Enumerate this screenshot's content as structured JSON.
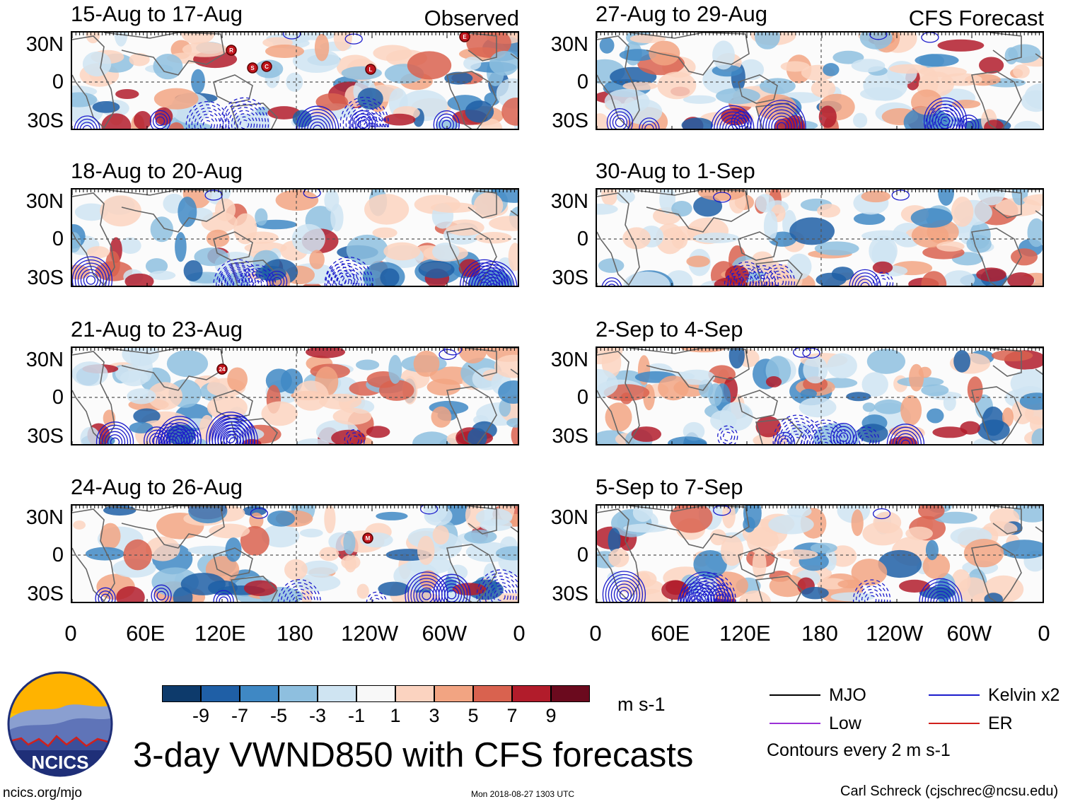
{
  "panels": [
    {
      "title": "15-Aug to 17-Aug",
      "corner": "Observed",
      "storms": [
        "R",
        "S",
        "C",
        "L",
        "E"
      ]
    },
    {
      "title": "18-Aug to 20-Aug",
      "corner": "",
      "storms": []
    },
    {
      "title": "21-Aug to 23-Aug",
      "corner": "",
      "storms": [
        "24"
      ]
    },
    {
      "title": "24-Aug to 26-Aug",
      "corner": "",
      "storms": [
        "M"
      ]
    },
    {
      "title": "27-Aug to 29-Aug",
      "corner": "CFS Forecast",
      "storms": []
    },
    {
      "title": "30-Aug to 1-Sep",
      "corner": "",
      "storms": []
    },
    {
      "title": "2-Sep to 4-Sep",
      "corner": "",
      "storms": []
    },
    {
      "title": "5-Sep to 7-Sep",
      "corner": "",
      "storms": []
    }
  ],
  "lat_labels": [
    "30N",
    "0",
    "30S"
  ],
  "lon_labels": [
    "0",
    "60E",
    "120E",
    "180",
    "120W",
    "60W",
    "0"
  ],
  "colorbar": {
    "unit": "m s-1",
    "ticks": [
      "-9",
      "-7",
      "-5",
      "-3",
      "-1",
      "1",
      "3",
      "5",
      "7",
      "9"
    ],
    "colors": [
      "#0d3a6b",
      "#1f5fa6",
      "#3f88c4",
      "#8ebfdf",
      "#cfe4f2",
      "#f8f8f8",
      "#fbd3c0",
      "#f2a482",
      "#d9624f",
      "#b21c2b",
      "#6b0a1e"
    ]
  },
  "legend": {
    "items": [
      {
        "label": "MJO",
        "color": "#000000"
      },
      {
        "label": "Kelvin x2",
        "color": "#1c1ccc"
      },
      {
        "label": "Low",
        "color": "#9b30d6"
      },
      {
        "label": "ER",
        "color": "#d0201c"
      }
    ],
    "note": "Contours every 2 m s-1"
  },
  "main_title": "3-day VWND850 with CFS forecasts",
  "logo_text": "NCICS",
  "footer": {
    "left": "ncics.org/mjo",
    "center": "Mon 2018-08-27 1303 UTC",
    "right": "Carl Schreck (cjschrec@ncsu.edu)"
  },
  "chart_data": {
    "type": "heatmap",
    "variable": "850-hPa meridional wind anomaly (VWND850)",
    "unit": "m s-1",
    "x_range": [
      0,
      360
    ],
    "y_range": [
      -40,
      40
    ],
    "x_ticks": [
      "0",
      "60E",
      "120E",
      "180",
      "120W",
      "60W",
      "0"
    ],
    "y_ticks": [
      "30N",
      "0",
      "30S"
    ],
    "color_levels": [
      -9,
      -7,
      -5,
      -3,
      -1,
      1,
      3,
      5,
      7,
      9
    ],
    "panels_observed": [
      "15-Aug to 17-Aug",
      "18-Aug to 20-Aug",
      "21-Aug to 23-Aug",
      "24-Aug to 26-Aug"
    ],
    "panels_forecast": [
      "27-Aug to 29-Aug",
      "30-Aug to 1-Sep",
      "2-Sep to 4-Sep",
      "5-Sep to 7-Sep"
    ],
    "contour_interval": 2
  }
}
